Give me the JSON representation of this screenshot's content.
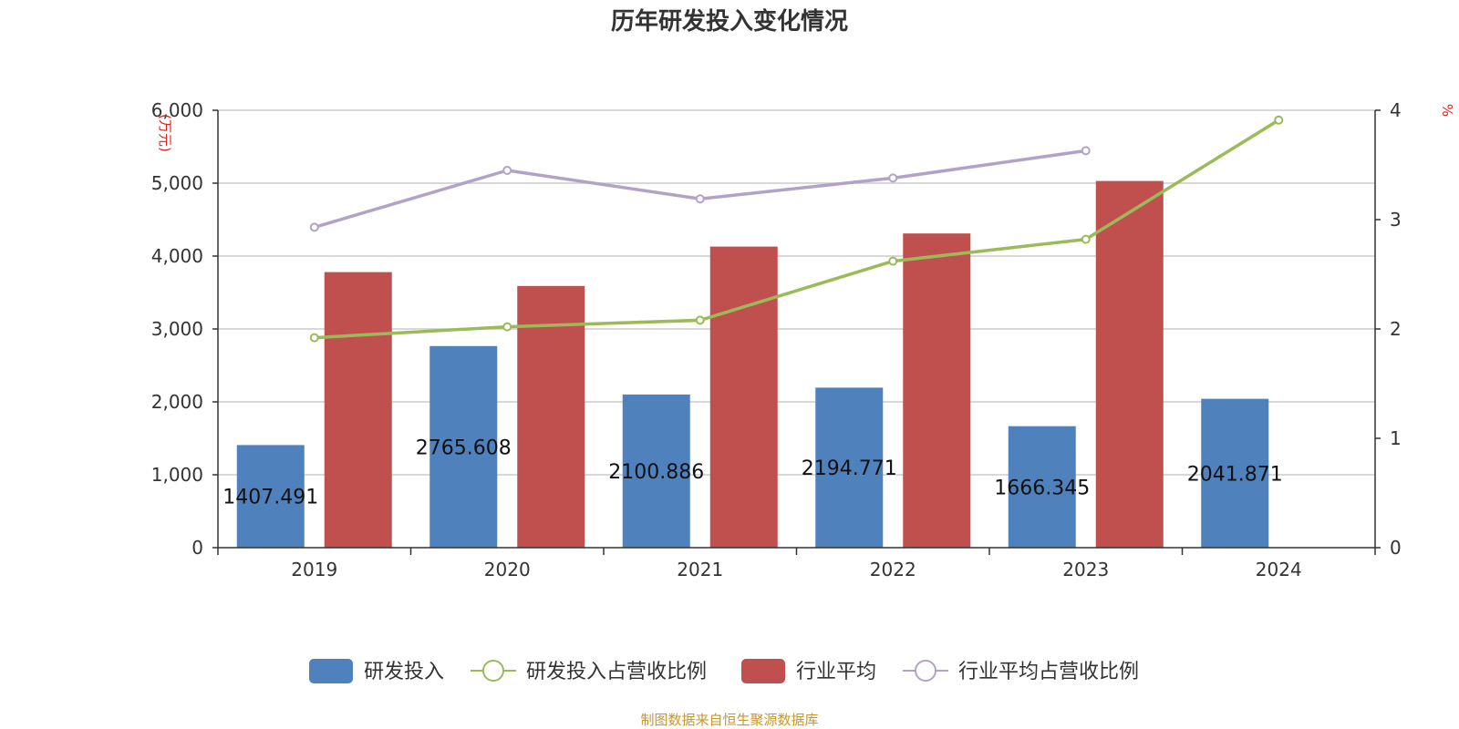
{
  "chart_data": {
    "type": "bar",
    "title": "历年研发投入变化情况",
    "categories": [
      "2019",
      "2020",
      "2021",
      "2022",
      "2023",
      "2024"
    ],
    "y_left": {
      "unit": "(万元)",
      "range": [
        0,
        6000
      ],
      "ticks": [
        "0",
        "1,000",
        "2,000",
        "3,000",
        "4,000",
        "5,000",
        "6,000"
      ],
      "tick_values": [
        0,
        1000,
        2000,
        3000,
        4000,
        5000,
        6000
      ]
    },
    "y_right": {
      "unit": "%",
      "range": [
        0,
        4
      ],
      "ticks": [
        "0",
        "1",
        "2",
        "3",
        "4"
      ],
      "tick_values": [
        0,
        1,
        2,
        3,
        4
      ]
    },
    "series": [
      {
        "name": "研发投入",
        "kind": "bar",
        "axis": "left",
        "color": "#4f81bd",
        "values": [
          1407.491,
          2765.608,
          2100.886,
          2194.771,
          1666.345,
          2041.871
        ],
        "labels": [
          "1407.491",
          "2765.608",
          "2100.886",
          "2194.771",
          "1666.345",
          "2041.871"
        ]
      },
      {
        "name": "研发投入占营收比例",
        "kind": "line",
        "axis": "right",
        "color": "#9bbb59",
        "values": [
          1.92,
          2.02,
          2.08,
          2.62,
          2.82,
          3.91
        ]
      },
      {
        "name": "行业平均",
        "kind": "bar",
        "axis": "left",
        "color": "#c0504d",
        "values": [
          3780,
          3590,
          4130,
          4310,
          5030,
          null
        ]
      },
      {
        "name": "行业平均占营收比例",
        "kind": "line",
        "axis": "right",
        "color": "#b3a2c7",
        "values": [
          2.93,
          3.45,
          3.19,
          3.38,
          3.63,
          null
        ]
      }
    ],
    "grid": true,
    "legend_position": "bottom",
    "source": "制图数据来自恒生聚源数据库"
  }
}
